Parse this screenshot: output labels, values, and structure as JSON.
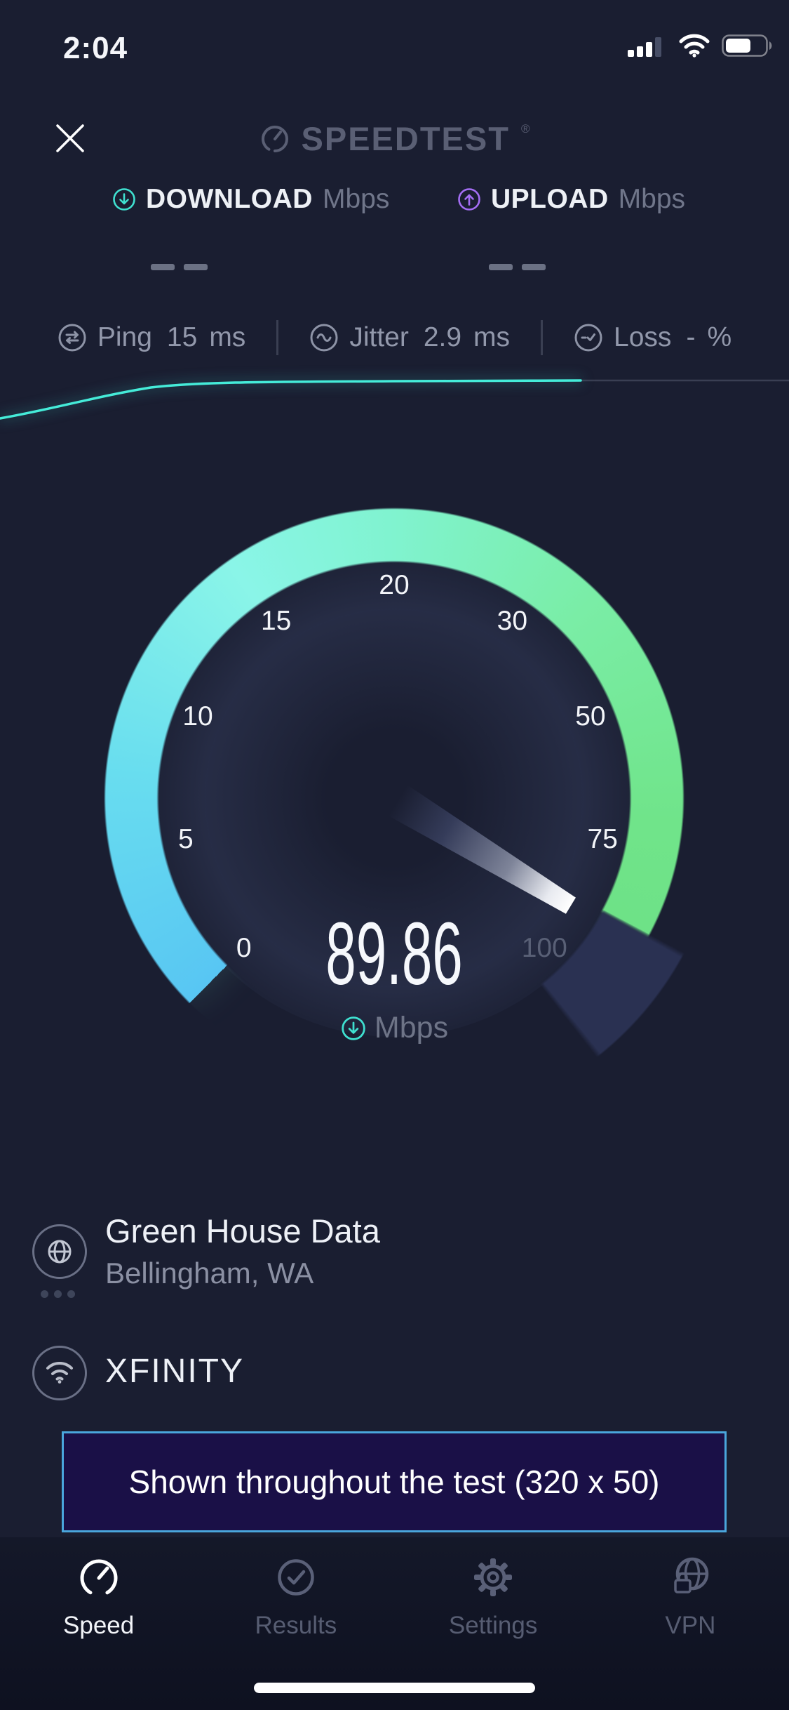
{
  "status_bar": {
    "time": "2:04"
  },
  "header": {
    "logo_text": "SPEEDTEST",
    "registered_mark": "®"
  },
  "metrics": {
    "download": {
      "label": "DOWNLOAD",
      "unit": "Mbps"
    },
    "upload": {
      "label": "UPLOAD",
      "unit": "Mbps"
    }
  },
  "stats": {
    "ping": {
      "label": "Ping",
      "value": "15",
      "unit": "ms"
    },
    "jitter": {
      "label": "Jitter",
      "value": "2.9",
      "unit": "ms"
    },
    "loss": {
      "label": "Loss",
      "value": "-",
      "unit": "%"
    }
  },
  "gauge": {
    "tick_labels": [
      "0",
      "5",
      "10",
      "15",
      "20",
      "30",
      "50",
      "75",
      "100"
    ],
    "value": "89.86",
    "unit": "Mbps"
  },
  "connection": {
    "server_name": "Green House Data",
    "server_location": "Bellingham, WA",
    "isp_name": "XFINITY"
  },
  "ad_banner": {
    "text": "Shown throughout the test (320 x 50)"
  },
  "tab_bar": {
    "items": [
      {
        "label": "Speed",
        "active": true
      },
      {
        "label": "Results",
        "active": false
      },
      {
        "label": "Settings",
        "active": false
      },
      {
        "label": "VPN",
        "active": false
      }
    ]
  },
  "colors": {
    "accent_teal": "#3fe0d0",
    "accent_purple": "#a46ef5",
    "arc_blue": "#58c6f3",
    "arc_green": "#6ee287",
    "arc_remaining": "#2a3152",
    "banner_border": "#4aa6dc"
  },
  "chart_data": {
    "type": "gauge+sparkline",
    "gauge": {
      "scale_ticks": [
        0,
        5,
        10,
        15,
        20,
        30,
        50,
        75,
        100
      ],
      "current_value": 89.86,
      "unit": "Mbps",
      "metric_shown": "download",
      "sweep_degrees": 270
    },
    "sparkline": {
      "description": "download speed ramping up then flat near current value",
      "points_norm_x_y": [
        [
          0,
          0.95
        ],
        [
          0.08,
          0.72
        ],
        [
          0.16,
          0.44
        ],
        [
          0.19,
          0.38
        ],
        [
          0.27,
          0.3
        ],
        [
          0.5,
          0.27
        ],
        [
          0.74,
          0.25
        ]
      ]
    }
  }
}
